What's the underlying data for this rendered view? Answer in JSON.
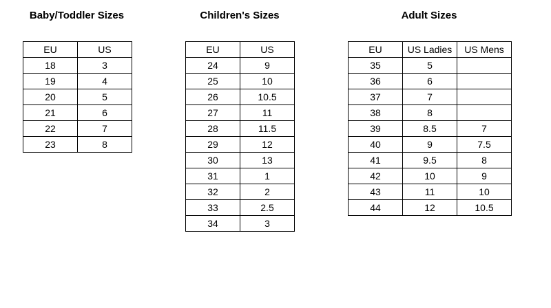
{
  "baby": {
    "title": "Baby/Toddler Sizes",
    "headers": [
      "EU",
      "US"
    ],
    "rows": [
      [
        "18",
        "3"
      ],
      [
        "19",
        "4"
      ],
      [
        "20",
        "5"
      ],
      [
        "21",
        "6"
      ],
      [
        "22",
        "7"
      ],
      [
        "23",
        "8"
      ]
    ]
  },
  "children": {
    "title": "Children's Sizes",
    "headers": [
      "EU",
      "US"
    ],
    "rows": [
      [
        "24",
        "9"
      ],
      [
        "25",
        "10"
      ],
      [
        "26",
        "10.5"
      ],
      [
        "27",
        "11"
      ],
      [
        "28",
        "11.5"
      ],
      [
        "29",
        "12"
      ],
      [
        "30",
        "13"
      ],
      [
        "31",
        "1"
      ],
      [
        "32",
        "2"
      ],
      [
        "33",
        "2.5"
      ],
      [
        "34",
        "3"
      ]
    ]
  },
  "adult": {
    "title": "Adult Sizes",
    "headers": [
      "EU",
      "US Ladies",
      "US Mens"
    ],
    "rows": [
      [
        "35",
        "5",
        ""
      ],
      [
        "36",
        "6",
        ""
      ],
      [
        "37",
        "7",
        ""
      ],
      [
        "38",
        "8",
        ""
      ],
      [
        "39",
        "8.5",
        "7"
      ],
      [
        "40",
        "9",
        "7.5"
      ],
      [
        "41",
        "9.5",
        "8"
      ],
      [
        "42",
        "10",
        "9"
      ],
      [
        "43",
        "11",
        "10"
      ],
      [
        "44",
        "12",
        "10.5"
      ]
    ]
  }
}
